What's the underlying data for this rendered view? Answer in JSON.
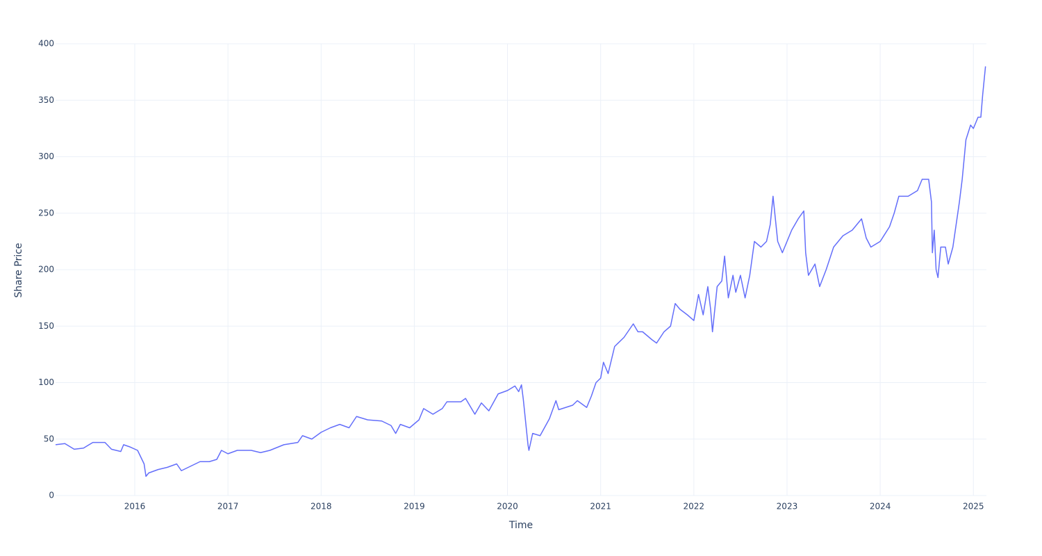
{
  "chart_data": {
    "type": "line",
    "x_label": "Time",
    "y_label": "Share Price",
    "x": [
      2015.15,
      2015.25,
      2015.35,
      2015.45,
      2015.55,
      2015.68,
      2015.75,
      2015.85,
      2015.88,
      2015.95,
      2016.03,
      2016.1,
      2016.12,
      2016.15,
      2016.25,
      2016.35,
      2016.45,
      2016.5,
      2016.6,
      2016.7,
      2016.8,
      2016.88,
      2016.93,
      2017.0,
      2017.1,
      2017.25,
      2017.35,
      2017.45,
      2017.6,
      2017.75,
      2017.8,
      2017.9,
      2018.0,
      2018.1,
      2018.2,
      2018.3,
      2018.38,
      2018.5,
      2018.65,
      2018.75,
      2018.8,
      2018.85,
      2018.95,
      2019.05,
      2019.1,
      2019.2,
      2019.3,
      2019.35,
      2019.5,
      2019.55,
      2019.65,
      2019.72,
      2019.8,
      2019.9,
      2020.0,
      2020.08,
      2020.12,
      2020.15,
      2020.17,
      2020.22,
      2020.23,
      2020.27,
      2020.35,
      2020.45,
      2020.52,
      2020.55,
      2020.7,
      2020.75,
      2020.85,
      2020.9,
      2020.95,
      2021.0,
      2021.03,
      2021.08,
      2021.15,
      2021.25,
      2021.35,
      2021.4,
      2021.45,
      2021.55,
      2021.6,
      2021.68,
      2021.75,
      2021.8,
      2021.85,
      2021.93,
      2022.0,
      2022.05,
      2022.1,
      2022.15,
      2022.18,
      2022.2,
      2022.25,
      2022.3,
      2022.33,
      2022.37,
      2022.42,
      2022.45,
      2022.5,
      2022.55,
      2022.6,
      2022.65,
      2022.72,
      2022.78,
      2022.82,
      2022.85,
      2022.9,
      2022.95,
      2023.0,
      2023.05,
      2023.12,
      2023.18,
      2023.2,
      2023.23,
      2023.3,
      2023.35,
      2023.42,
      2023.5,
      2023.6,
      2023.7,
      2023.8,
      2023.85,
      2023.9,
      2024.0,
      2024.1,
      2024.15,
      2024.2,
      2024.3,
      2024.4,
      2024.45,
      2024.52,
      2024.55,
      2024.56,
      2024.58,
      2024.6,
      2024.62,
      2024.65,
      2024.7,
      2024.73,
      2024.78,
      2024.85,
      2024.88,
      2024.92,
      2024.97,
      2025.0,
      2025.05,
      2025.08,
      2025.1,
      2025.13
    ],
    "values": [
      45,
      46,
      41,
      42,
      47,
      47,
      41,
      39,
      45,
      43,
      40,
      28,
      17,
      20,
      23,
      25,
      28,
      22,
      26,
      30,
      30,
      32,
      40,
      37,
      40,
      40,
      38,
      40,
      45,
      47,
      53,
      50,
      56,
      60,
      63,
      60,
      70,
      67,
      66,
      62,
      55,
      63,
      60,
      67,
      77,
      72,
      77,
      83,
      83,
      86,
      72,
      82,
      75,
      90,
      93,
      97,
      92,
      98,
      85,
      45,
      40,
      55,
      53,
      68,
      84,
      76,
      80,
      84,
      78,
      88,
      100,
      104,
      118,
      108,
      132,
      140,
      152,
      145,
      145,
      138,
      135,
      145,
      150,
      170,
      165,
      160,
      155,
      178,
      160,
      185,
      165,
      145,
      185,
      190,
      212,
      175,
      195,
      180,
      195,
      175,
      195,
      225,
      220,
      225,
      240,
      265,
      225,
      215,
      225,
      235,
      245,
      252,
      215,
      195,
      205,
      185,
      200,
      220,
      230,
      235,
      245,
      228,
      220,
      225,
      238,
      250,
      265,
      265,
      270,
      280,
      280,
      260,
      215,
      235,
      200,
      193,
      220,
      220,
      205,
      220,
      260,
      280,
      315,
      328,
      325,
      335,
      335,
      355,
      380
    ],
    "color": "#636efa",
    "xlim": [
      2015.15,
      2025.14
    ],
    "xticks": [
      2016,
      2017,
      2018,
      2019,
      2020,
      2021,
      2022,
      2023,
      2024,
      2025
    ],
    "ylim": [
      0,
      400
    ],
    "yticks": [
      0,
      50,
      100,
      150,
      200,
      250,
      300,
      350,
      400
    ],
    "grid": true
  }
}
